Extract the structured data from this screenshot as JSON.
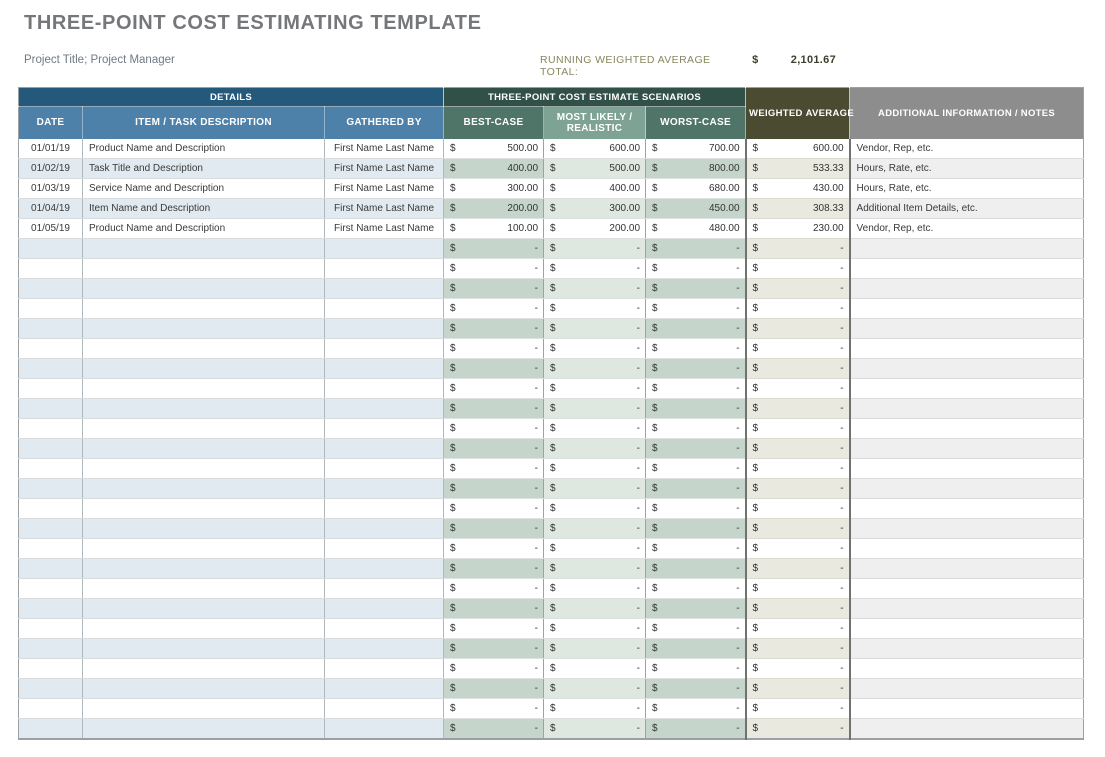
{
  "page": {
    "title": "THREE-POINT COST ESTIMATING TEMPLATE",
    "subtitle": "Project Title; Project Manager",
    "running_total_label": "RUNNING WEIGHTED AVERAGE TOTAL:",
    "running_total_currency": "$",
    "running_total_value": "2,101.67"
  },
  "table": {
    "groups": {
      "details": "DETAILS",
      "scenarios": "THREE-POINT COST ESTIMATE SCENARIOS",
      "weighted": "WEIGHTED AVERAGE",
      "notes": "ADDITIONAL INFORMATION / NOTES"
    },
    "columns": [
      "DATE",
      "ITEM / TASK DESCRIPTION",
      "GATHERED BY",
      "BEST-CASE",
      "MOST LIKELY / REALISTIC",
      "WORST-CASE"
    ],
    "currency_symbol": "$",
    "empty_value": "-",
    "empty_row_count": 25,
    "rows": [
      {
        "date": "01/01/19",
        "item": "Product Name and Description",
        "gathered": "First Name Last Name",
        "best": "500.00",
        "most": "600.00",
        "worst": "700.00",
        "weighted": "600.00",
        "notes": "Vendor, Rep, etc."
      },
      {
        "date": "01/02/19",
        "item": "Task Title and Description",
        "gathered": "First Name Last Name",
        "best": "400.00",
        "most": "500.00",
        "worst": "800.00",
        "weighted": "533.33",
        "notes": "Hours, Rate, etc."
      },
      {
        "date": "01/03/19",
        "item": "Service Name and Description",
        "gathered": "First Name Last Name",
        "best": "300.00",
        "most": "400.00",
        "worst": "680.00",
        "weighted": "430.00",
        "notes": "Hours, Rate, etc."
      },
      {
        "date": "01/04/19",
        "item": "Item Name and Description",
        "gathered": "First Name Last Name",
        "best": "200.00",
        "most": "300.00",
        "worst": "450.00",
        "weighted": "308.33",
        "notes": "Additional Item Details, etc."
      },
      {
        "date": "01/05/19",
        "item": "Product Name and Description",
        "gathered": "First Name Last Name",
        "best": "100.00",
        "most": "200.00",
        "worst": "480.00",
        "weighted": "230.00",
        "notes": "Vendor, Rep, etc."
      }
    ]
  },
  "colors": {
    "band_blue": "#24597c",
    "sub_blue": "#4e81aa",
    "band_green": "#315048",
    "case_green": "#4e7568",
    "most_green": "#7ea395",
    "weighted_olive": "#4a4b31",
    "notes_gray": "#8d8d8d",
    "shade_blue": "#e1eaf0",
    "shade_green": "#c6d5cc",
    "shade_green_light": "#dee8e1",
    "shade_olive": "#e9e9df",
    "outer_border": "#9aa0a3"
  }
}
